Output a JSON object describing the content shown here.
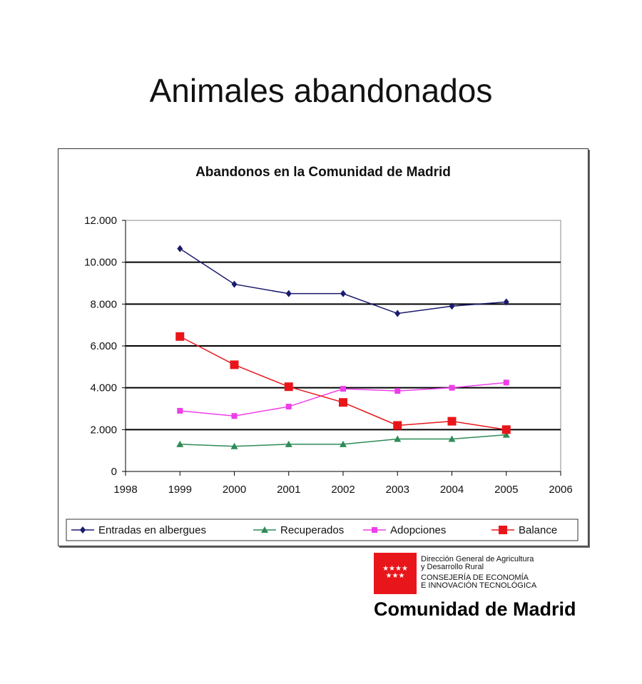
{
  "title": "Animales abandonados",
  "chart_data": {
    "type": "line",
    "title": "Abandonos en la Comunidad de Madrid",
    "xlabel": "",
    "ylabel": "",
    "x": [
      1999,
      2000,
      2001,
      2002,
      2003,
      2004,
      2005
    ],
    "xlim": [
      1998,
      2006
    ],
    "xticks": [
      "1998",
      "1999",
      "2000",
      "2001",
      "2002",
      "2003",
      "2004",
      "2005",
      "2006"
    ],
    "ylim": [
      0,
      12000
    ],
    "yticks": [
      "0",
      "2.000",
      "4.000",
      "6.000",
      "8.000",
      "10.000",
      "12.000"
    ],
    "grid": "horizontal",
    "legend": "bottom",
    "series": [
      {
        "name": "Entradas en albergues",
        "color": "#1a1a6e",
        "marker": "diamond",
        "values": [
          10650,
          8950,
          8500,
          8500,
          7550,
          7900,
          8100
        ]
      },
      {
        "name": "Recuperados",
        "color": "#2e8b57",
        "marker": "triangle",
        "values": [
          1300,
          1200,
          1300,
          1300,
          1550,
          1550,
          1750
        ]
      },
      {
        "name": "Adopciones",
        "color": "#ee3ee8",
        "marker": "square",
        "values": [
          2900,
          2650,
          3100,
          3950,
          3850,
          4000,
          4250
        ]
      },
      {
        "name": "Balance",
        "color": "#e8161b",
        "marker": "bigsquare",
        "values": [
          6450,
          5100,
          4050,
          3300,
          2200,
          2400,
          2000
        ]
      }
    ]
  },
  "logo": {
    "line1": "Dirección General de Agricultura",
    "line2": "y Desarrollo Rural",
    "line3": "CONSEJERÍA DE ECONOMÍA",
    "line4": "E INNOVACIÓN TECNOLÓGICA",
    "name": "Comunidad de Madrid",
    "stars": "★★★★ ★★★"
  }
}
